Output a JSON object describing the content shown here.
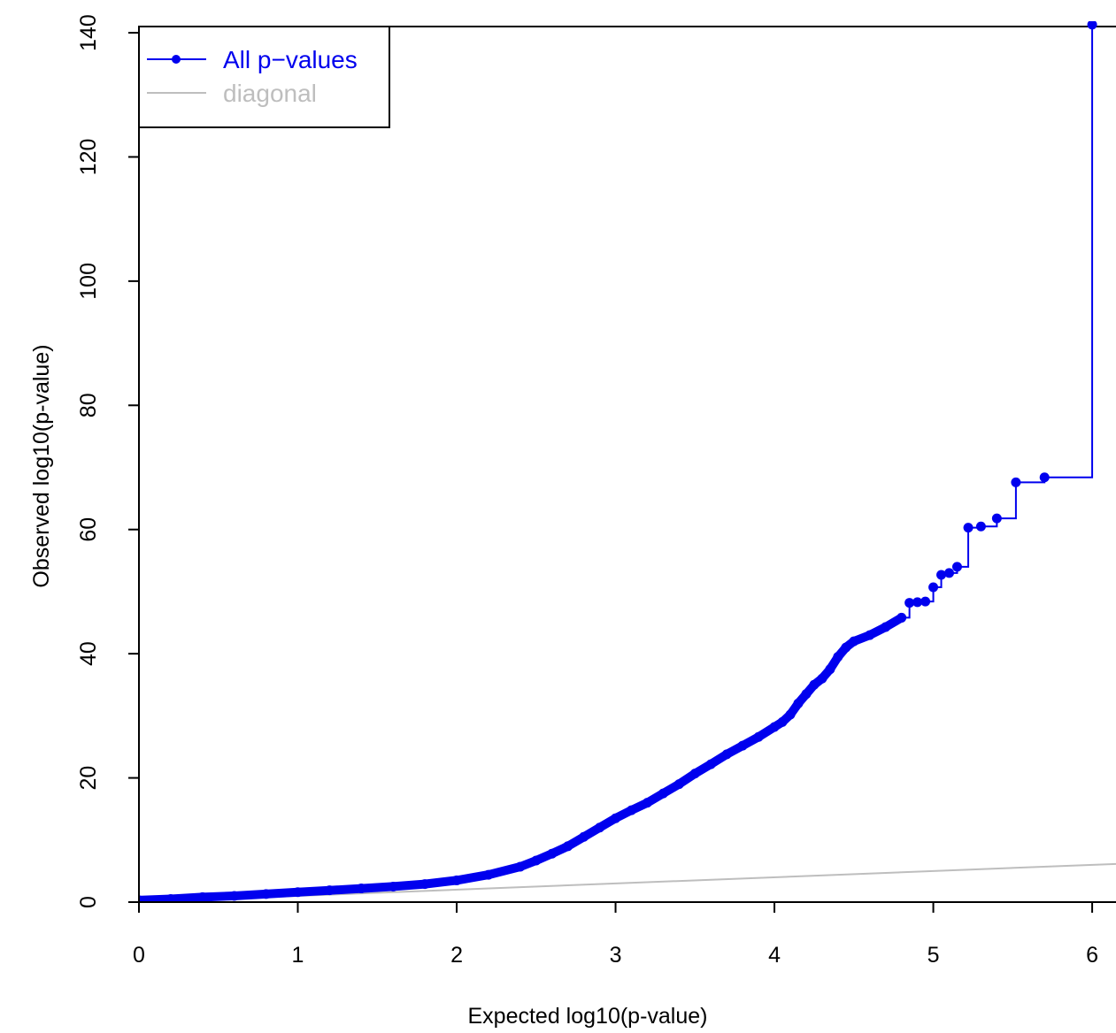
{
  "chart_data": {
    "type": "line",
    "title": "",
    "xlabel": "Expected log10(p-value)",
    "ylabel": "Observed log10(p-value)",
    "xlim": [
      0,
      6.15
    ],
    "ylim": [
      0,
      141
    ],
    "x_ticks": [
      0,
      1,
      2,
      3,
      4,
      5,
      6
    ],
    "y_ticks": [
      0,
      20,
      40,
      60,
      80,
      100,
      120,
      140
    ],
    "x_tick_labels": [
      "0",
      "1",
      "2",
      "3",
      "4",
      "5",
      "6"
    ],
    "y_tick_labels": [
      "0",
      "20",
      "40",
      "60",
      "80",
      "100",
      "120",
      "140"
    ],
    "legend": {
      "placement": "top-left",
      "entries": [
        {
          "label": "All p−values",
          "color": "#0000ee",
          "style": "line-point"
        },
        {
          "label": "diagonal",
          "color": "#bebebe",
          "style": "line"
        }
      ]
    },
    "colors": {
      "series": "#0000ee",
      "diagonal": "#bebebe",
      "axis": "#000000"
    },
    "series": [
      {
        "name": "All p−values",
        "style": "dense-points",
        "x": [
          0,
          0.2,
          0.4,
          0.6,
          0.8,
          1.0,
          1.2,
          1.4,
          1.6,
          1.8,
          2.0,
          2.2,
          2.4,
          2.5,
          2.6,
          2.7,
          2.8,
          2.9,
          3.0,
          3.1,
          3.2,
          3.3,
          3.4,
          3.5,
          3.6,
          3.7,
          3.8,
          3.9,
          4.0,
          4.05,
          4.1,
          4.15,
          4.2,
          4.25,
          4.3,
          4.35,
          4.4,
          4.45,
          4.5,
          4.6,
          4.7,
          4.8
        ],
        "y": [
          0.3,
          0.5,
          0.8,
          1.0,
          1.3,
          1.6,
          1.9,
          2.2,
          2.5,
          2.9,
          3.5,
          4.4,
          5.7,
          6.7,
          7.8,
          9.0,
          10.5,
          12.0,
          13.5,
          14.8,
          16.0,
          17.5,
          19.0,
          20.7,
          22.2,
          23.8,
          25.2,
          26.6,
          28.2,
          29.0,
          30.2,
          32.0,
          33.5,
          35.0,
          36.0,
          37.5,
          39.5,
          41.0,
          42.0,
          43.0,
          44.3,
          45.8
        ]
      },
      {
        "name": "",
        "style": "step-points",
        "x": [
          4.85,
          4.9,
          4.95,
          5.0,
          5.05,
          5.1,
          5.15,
          5.22,
          5.3,
          5.4,
          5.52,
          5.7,
          6.0
        ],
        "y": [
          48.2,
          48.3,
          48.4,
          50.7,
          52.7,
          53.0,
          54.0,
          60.3,
          60.5,
          61.8,
          67.6,
          68.4,
          141.3
        ]
      },
      {
        "name": "diagonal",
        "style": "line",
        "x": [
          0,
          6.15
        ],
        "y": [
          0,
          6.15
        ]
      }
    ]
  }
}
